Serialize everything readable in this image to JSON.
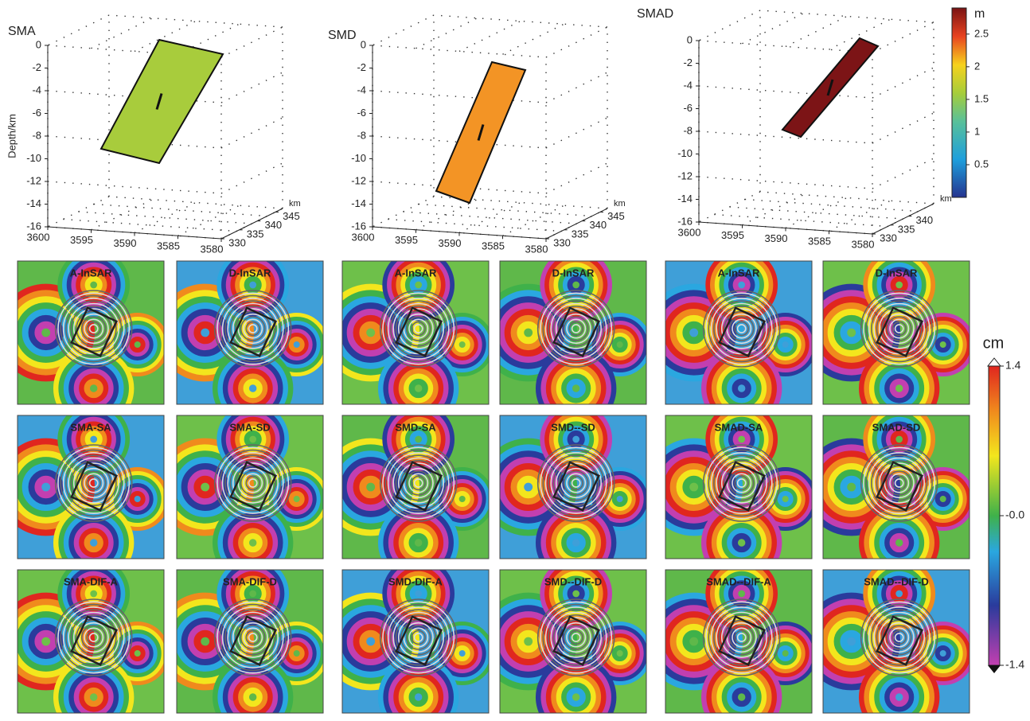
{
  "fault_models": [
    {
      "title": "SMA",
      "fault_color": "#a8cc3c",
      "depth_label": "Depth/km",
      "depth_ticks": [
        0,
        -2,
        -4,
        -6,
        -8,
        -10,
        -12,
        -14,
        -16
      ],
      "x_ticks": [
        3600,
        3595,
        3590,
        3585,
        3580
      ],
      "y_ticks": [
        330,
        335,
        340,
        345
      ],
      "y_unit": "km"
    },
    {
      "title": "SMD",
      "fault_color": "#f39425",
      "depth_ticks": [
        0,
        -2,
        -4,
        -6,
        -8,
        -10,
        -12,
        -14,
        -16
      ],
      "x_ticks": [
        3600,
        3595,
        3590,
        3585,
        3580
      ],
      "y_ticks": [
        330,
        335,
        340,
        345
      ],
      "y_unit": "km"
    },
    {
      "title": "SMAD",
      "fault_color": "#7c1416",
      "depth_ticks": [
        0,
        -2,
        -4,
        -6,
        -8,
        -10,
        -12,
        -14,
        -16
      ],
      "x_ticks": [
        3600,
        3595,
        3590,
        3585,
        3580
      ],
      "y_ticks": [
        330,
        335,
        340
      ],
      "y_unit": "km"
    }
  ],
  "slip_colorbar": {
    "unit": "m",
    "range": [
      0,
      2.9
    ],
    "ticks": [
      0.5,
      1,
      1.5,
      2,
      2.5
    ]
  },
  "los_colorbar": {
    "unit": "cm",
    "range": [
      -1.4,
      1.4
    ],
    "ticks": [
      1.4,
      {
        "value": 0,
        "label": "-0.0"
      },
      -1.4
    ]
  },
  "interferograms": {
    "rows": [
      [
        "A-InSAR",
        "D-InSAR",
        "A-InSAR",
        "D-InSAR",
        "A-InSAR",
        "D-InSAR"
      ],
      [
        "SMA-SA",
        "SMA-SD",
        "SMD-SA",
        "SMD--SD",
        "SMAD-SA",
        "SMAD-SD"
      ],
      [
        "SMA-DIF-A",
        "SMA-DIF-D",
        "SMD-DIF-A",
        "SMD--DIF-D",
        "SMAD--DIF-A",
        "SMAD--DIF-D"
      ]
    ]
  }
}
